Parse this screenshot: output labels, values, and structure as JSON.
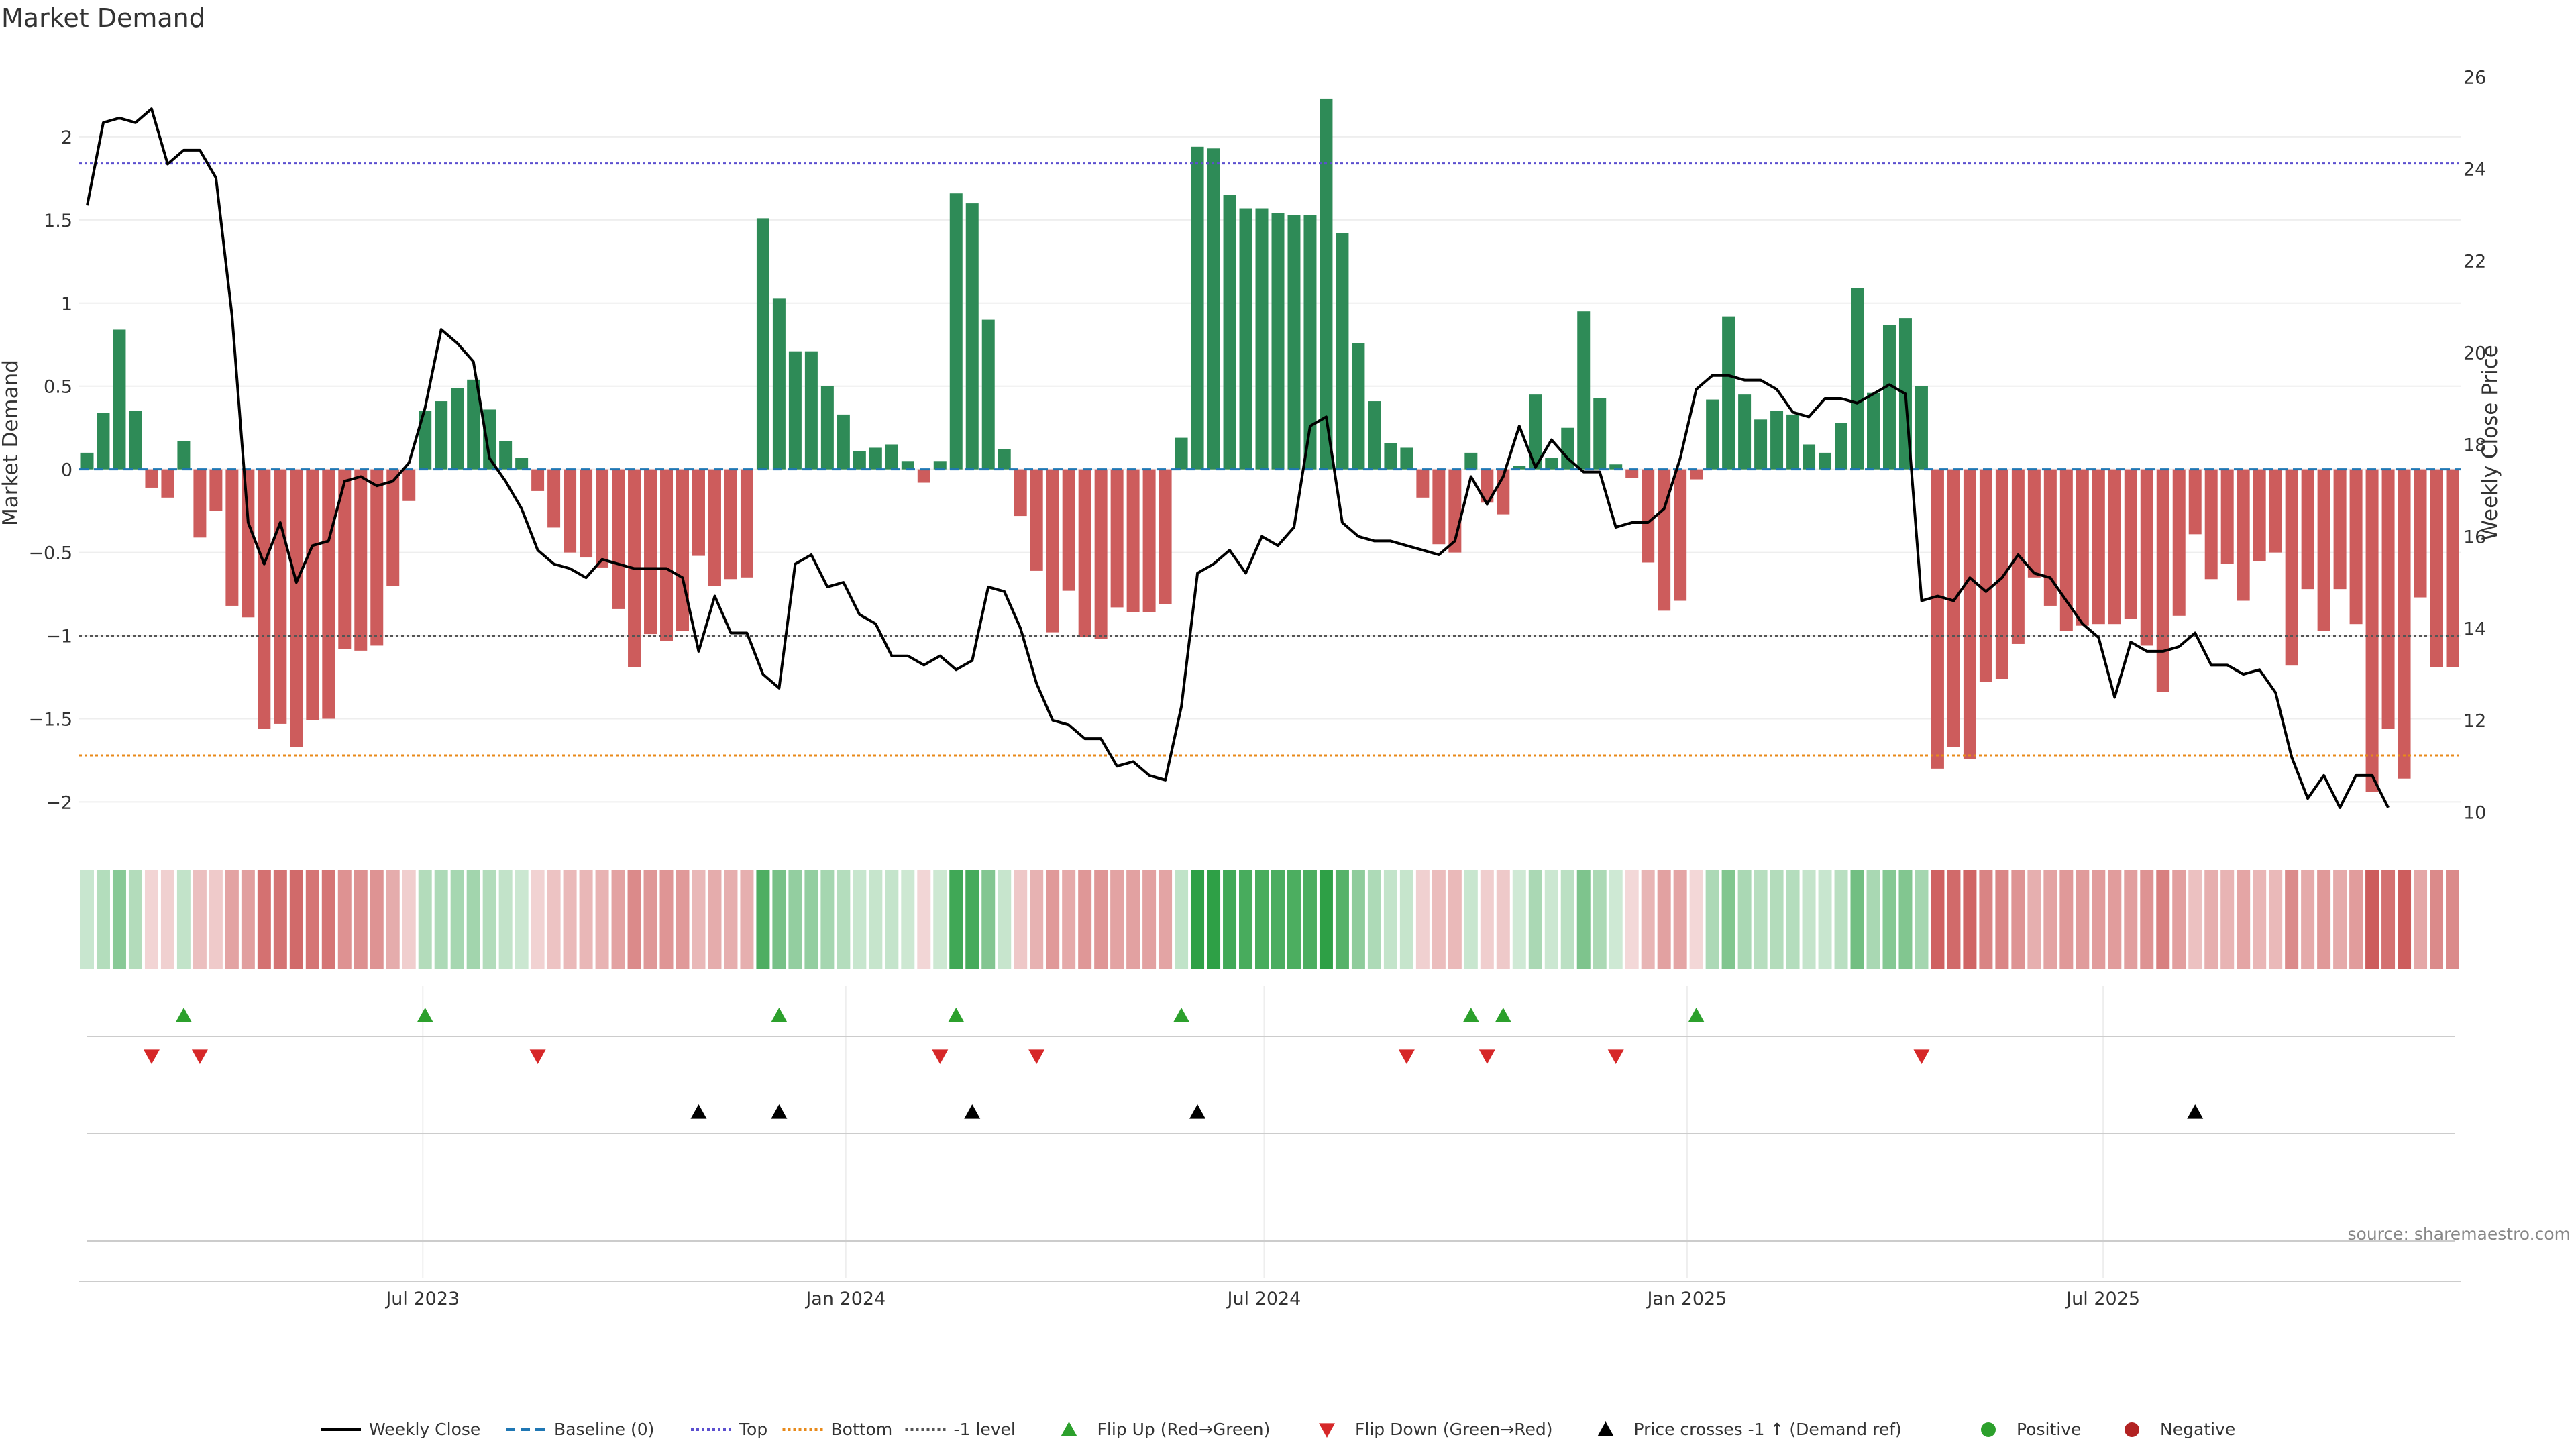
{
  "chart_data": {
    "type": "bar",
    "title": "Market Demand",
    "ylabel_left": "Market Demand",
    "ylabel_right": "Weekly Close Price",
    "source": "source: sharemaestro.com",
    "start_date": "2023-02-05",
    "ylim_left": [
      -2.2,
      2.5
    ],
    "ylim_right": [
      9.5,
      26.5
    ],
    "yticks_left": [
      2,
      1.5,
      1,
      0.5,
      0,
      -0.5,
      -1,
      -1.5,
      -2
    ],
    "yticks_left_labels": [
      "2",
      "1.5",
      "1",
      "0.5",
      "0",
      "−0.5",
      "−1",
      "−1.5",
      "−2"
    ],
    "yticks_right": [
      26,
      24,
      22,
      20,
      18,
      16,
      14,
      12,
      10
    ],
    "x_ticks": [
      {
        "label": "Jul 2023",
        "date": "2023-07-01"
      },
      {
        "label": "Jan 2024",
        "date": "2024-01-01"
      },
      {
        "label": "Jul 2024",
        "date": "2024-07-01"
      },
      {
        "label": "Jan 2025",
        "date": "2025-01-01"
      },
      {
        "label": "Jul 2025",
        "date": "2025-07-01"
      }
    ],
    "levels": {
      "top": 1.84,
      "bottom": -1.72,
      "minus_one": -1.0,
      "baseline": 0
    },
    "demand": [
      0.1,
      0.34,
      0.84,
      0.35,
      -0.11,
      -0.17,
      0.17,
      -0.41,
      -0.25,
      -0.82,
      -0.89,
      -1.56,
      -1.53,
      -1.67,
      -1.51,
      -1.5,
      -1.08,
      -1.09,
      -1.06,
      -0.7,
      -0.19,
      0.35,
      0.41,
      0.49,
      0.54,
      0.36,
      0.17,
      0.07,
      -0.13,
      -0.35,
      -0.5,
      -0.53,
      -0.59,
      -0.84,
      -1.19,
      -0.99,
      -1.03,
      -0.97,
      -0.52,
      -0.7,
      -0.66,
      -0.65,
      1.51,
      1.03,
      0.71,
      0.71,
      0.5,
      0.33,
      0.11,
      0.13,
      0.15,
      0.05,
      -0.08,
      0.05,
      1.66,
      1.6,
      0.9,
      0.12,
      -0.28,
      -0.61,
      -0.98,
      -0.73,
      -1.01,
      -1.02,
      -0.83,
      -0.86,
      -0.86,
      -0.81,
      0.19,
      1.94,
      1.93,
      1.65,
      1.57,
      1.57,
      1.54,
      1.53,
      1.53,
      2.23,
      1.42,
      0.76,
      0.41,
      0.16,
      0.13,
      -0.17,
      -0.45,
      -0.5,
      0.1,
      -0.2,
      -0.27,
      0.02,
      0.45,
      0.07,
      0.25,
      0.95,
      0.43,
      0.03,
      -0.05,
      -0.56,
      -0.85,
      -0.79,
      -0.06,
      0.42,
      0.92,
      0.45,
      0.3,
      0.35,
      0.33,
      0.15,
      0.1,
      0.28,
      1.09,
      0.46,
      0.87,
      0.91,
      0.5,
      -1.8,
      -1.67,
      -1.74,
      -1.28,
      -1.26,
      -1.05,
      -0.65,
      -0.82,
      -0.97,
      -0.94,
      -0.93,
      -0.93,
      -0.9,
      -1.06,
      -1.34,
      -0.88,
      -0.39,
      -0.66,
      -0.57,
      -0.79,
      -0.55,
      -0.5,
      -1.18,
      -0.72,
      -0.97,
      -0.72,
      -0.93,
      -1.94,
      -1.56,
      -1.86,
      -0.77,
      -1.19,
      -1.19
    ],
    "price": [
      23.2,
      25.0,
      25.1,
      25.0,
      25.3,
      24.1,
      24.4,
      24.4,
      23.8,
      20.8,
      16.3,
      15.4,
      16.3,
      15.0,
      15.8,
      15.9,
      17.2,
      17.3,
      17.1,
      17.2,
      17.6,
      18.8,
      20.5,
      20.2,
      19.8,
      17.7,
      17.2,
      16.6,
      15.7,
      15.4,
      15.3,
      15.1,
      15.5,
      15.4,
      15.3,
      15.3,
      15.3,
      15.1,
      13.5,
      14.7,
      13.9,
      13.9,
      13.0,
      12.7,
      15.4,
      15.6,
      14.9,
      15.0,
      14.3,
      14.1,
      13.4,
      13.4,
      13.2,
      13.4,
      13.1,
      13.3,
      14.9,
      14.8,
      14.0,
      12.8,
      12.0,
      11.9,
      11.6,
      11.6,
      11.0,
      11.1,
      10.8,
      10.7,
      12.3,
      15.2,
      15.4,
      15.7,
      15.2,
      16.0,
      15.8,
      16.2,
      18.4,
      18.6,
      16.3,
      16.0,
      15.9,
      15.9,
      15.8,
      15.7,
      15.6,
      15.9,
      17.3,
      16.7,
      17.3,
      18.4,
      17.5,
      18.1,
      17.7,
      17.4,
      17.4,
      16.2,
      16.3,
      16.3,
      16.6,
      17.7,
      19.2,
      19.5,
      19.5,
      19.4,
      19.4,
      19.2,
      18.7,
      18.6,
      19.0,
      19.0,
      18.9,
      19.1,
      19.3,
      19.1,
      14.6,
      14.7,
      14.6,
      15.1,
      14.8,
      15.1,
      15.6,
      15.2,
      15.1,
      14.6,
      14.1,
      13.8,
      12.5,
      13.7,
      13.5,
      13.5,
      13.6,
      13.9,
      13.2,
      13.2,
      13.0,
      13.1,
      12.6,
      11.2,
      10.3,
      10.8,
      10.1,
      10.8,
      10.8,
      10.1
    ],
    "flip_up_idx": [
      6,
      21,
      43,
      54,
      68,
      86,
      88,
      100
    ],
    "flip_down_idx": [
      4,
      7,
      28,
      53,
      59,
      82,
      87,
      95,
      114
    ],
    "price_cross_idx": [
      38,
      43,
      55,
      69,
      131
    ],
    "colors": {
      "positive": "#2e8b57",
      "negative": "#cd5c5c",
      "price": "#000000",
      "baseline": "#1f77b4",
      "top": "#5b4fcf",
      "bottom": "#e88a1a",
      "minus_one": "#555555",
      "flip_up": "#2ca02c",
      "flip_down": "#d62728",
      "price_cross": "#000000",
      "legend_positive": "#2ca02c",
      "legend_negative": "#b22222"
    },
    "legend": [
      {
        "label": "Weekly Close",
        "kind": "line",
        "color": "#000000",
        "dash": ""
      },
      {
        "label": "Baseline (0)",
        "kind": "line",
        "color": "#1f77b4",
        "dash": "14,8"
      },
      {
        "label": "Top",
        "kind": "line",
        "color": "#5b4fcf",
        "dash": "4,4"
      },
      {
        "label": "Bottom",
        "kind": "line",
        "color": "#e88a1a",
        "dash": "4,4"
      },
      {
        "label": "-1 level",
        "kind": "line",
        "color": "#555555",
        "dash": "4,4"
      },
      {
        "label": "Flip Up (Red→Green)",
        "kind": "tri-up",
        "color": "#2ca02c"
      },
      {
        "label": "Flip Down (Green→Red)",
        "kind": "tri-down",
        "color": "#d62728"
      },
      {
        "label": "Price crosses -1 ↑ (Demand ref)",
        "kind": "tri-up",
        "color": "#000000"
      },
      {
        "label": "Positive",
        "kind": "dot",
        "color": "#2ca02c"
      },
      {
        "label": "Negative",
        "kind": "dot",
        "color": "#b22222"
      }
    ]
  }
}
